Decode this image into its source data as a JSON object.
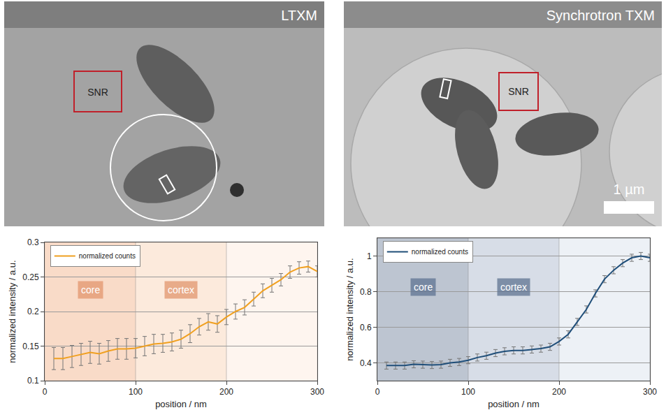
{
  "images": [
    {
      "label": "LTXM",
      "roi_label": "SNR"
    },
    {
      "label": "Synchrotron TXM",
      "roi_label": "SNR",
      "scale_bar": "1 µm"
    }
  ],
  "chart_data": [
    {
      "type": "line",
      "xlabel": "position / nm",
      "ylabel": "normalized intensity / a.u.",
      "legend": "top-left",
      "grid": true,
      "xlim": [
        0,
        300
      ],
      "xticks": [
        0,
        100,
        200,
        300
      ],
      "ylim": [
        0.1,
        0.3
      ],
      "yticks": [
        0.1,
        0.15,
        0.2,
        0.25,
        0.3
      ],
      "regions": [
        {
          "label": "core",
          "x0": 0,
          "x1": 100,
          "color": "rgba(240,160,110,0.38)"
        },
        {
          "label": "cortex",
          "x0": 100,
          "x1": 200,
          "color": "rgba(245,185,140,0.30)"
        },
        {
          "x0": 200,
          "x1": 300,
          "color": "rgba(250,215,190,0.25)"
        }
      ],
      "x": [
        10,
        20,
        30,
        40,
        50,
        60,
        70,
        80,
        90,
        100,
        110,
        120,
        130,
        140,
        150,
        160,
        170,
        180,
        190,
        200,
        210,
        220,
        230,
        240,
        250,
        260,
        270,
        280,
        290,
        300
      ],
      "series": [
        {
          "name": "normalized counts",
          "color": "#f0a020",
          "values": [
            0.132,
            0.132,
            0.135,
            0.138,
            0.141,
            0.139,
            0.143,
            0.146,
            0.146,
            0.147,
            0.15,
            0.153,
            0.154,
            0.156,
            0.16,
            0.168,
            0.178,
            0.185,
            0.182,
            0.192,
            0.2,
            0.206,
            0.218,
            0.23,
            0.238,
            0.246,
            0.257,
            0.263,
            0.265,
            0.258
          ],
          "errors": [
            0.016,
            0.016,
            0.016,
            0.016,
            0.016,
            0.015,
            0.015,
            0.015,
            0.015,
            0.014,
            0.014,
            0.014,
            0.013,
            0.013,
            0.013,
            0.013,
            0.012,
            0.012,
            0.012,
            0.011,
            0.011,
            0.011,
            0.01,
            0.01,
            0.01,
            0.009,
            0.009,
            0.009,
            0.008,
            0.008
          ]
        }
      ]
    },
    {
      "type": "line",
      "xlabel": "position / nm",
      "ylabel": "normalized intensity / a.u.",
      "legend": "top-left",
      "grid": true,
      "xlim": [
        0,
        300
      ],
      "xticks": [
        0,
        100,
        200,
        300
      ],
      "ylim": [
        0.3,
        1.1
      ],
      "yticks": [
        0.4,
        0.6,
        0.8,
        1
      ],
      "regions": [
        {
          "label": "core",
          "x0": 0,
          "x1": 100,
          "color": "rgba(90,110,140,0.40)"
        },
        {
          "label": "cortex",
          "x0": 100,
          "x1": 200,
          "color": "rgba(130,150,180,0.32)"
        },
        {
          "x0": 200,
          "x1": 300,
          "color": "rgba(185,200,220,0.25)"
        }
      ],
      "x": [
        10,
        20,
        30,
        40,
        50,
        60,
        70,
        80,
        90,
        100,
        110,
        120,
        130,
        140,
        150,
        160,
        170,
        180,
        190,
        200,
        210,
        220,
        230,
        240,
        250,
        260,
        270,
        280,
        290,
        300
      ],
      "series": [
        {
          "name": "normalized counts",
          "color": "#1f4e79",
          "values": [
            0.385,
            0.385,
            0.385,
            0.392,
            0.39,
            0.388,
            0.39,
            0.4,
            0.405,
            0.415,
            0.43,
            0.44,
            0.455,
            0.465,
            0.47,
            0.47,
            0.475,
            0.48,
            0.49,
            0.52,
            0.56,
            0.63,
            0.7,
            0.79,
            0.87,
            0.92,
            0.96,
            0.99,
            1.0,
            0.99
          ],
          "errors": [
            0.02,
            0.02,
            0.02,
            0.02,
            0.02,
            0.02,
            0.02,
            0.02,
            0.02,
            0.02,
            0.02,
            0.02,
            0.02,
            0.02,
            0.02,
            0.02,
            0.02,
            0.02,
            0.02,
            0.02,
            0.02,
            0.02,
            0.02,
            0.02,
            0.02,
            0.02,
            0.02,
            0.02,
            0.02,
            0.02
          ]
        }
      ]
    }
  ]
}
